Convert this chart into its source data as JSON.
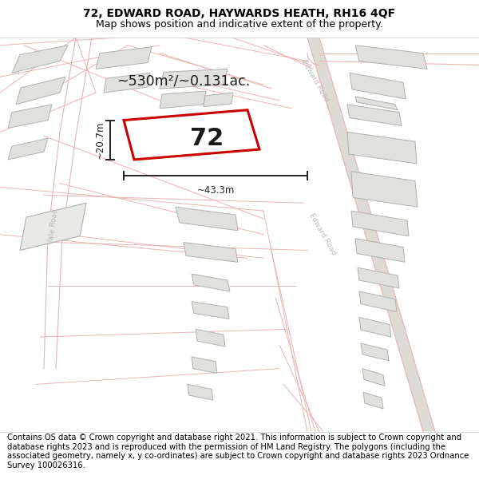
{
  "title": "72, EDWARD ROAD, HAYWARDS HEATH, RH16 4QF",
  "subtitle": "Map shows position and indicative extent of the property.",
  "area_text": "~530m²/~0.131ac.",
  "dim_width": "~43.3m",
  "dim_height": "~20.7m",
  "number_label": "72",
  "footer": "Contains OS data © Crown copyright and database right 2021. This information is subject to Crown copyright and database rights 2023 and is reproduced with the permission of HM Land Registry. The polygons (including the associated geometry, namely x, y co-ordinates) are subject to Crown copyright and database rights 2023 Ordnance Survey 100026316.",
  "map_bg": "#f5f4f0",
  "plot_color": "#cc0000",
  "plot_fill": "#ffffff",
  "road_color": "#e8b4b4",
  "building_fill": "#e0e0dc",
  "building_stroke": "#b0b0b0",
  "road_stripe": "#c8b8b8",
  "dim_color": "#222222",
  "title_fontsize": 10,
  "subtitle_fontsize": 9,
  "footer_fontsize": 7.2,
  "label_color": "#c0a0a0",
  "road_label_color": "#aaaaaa"
}
